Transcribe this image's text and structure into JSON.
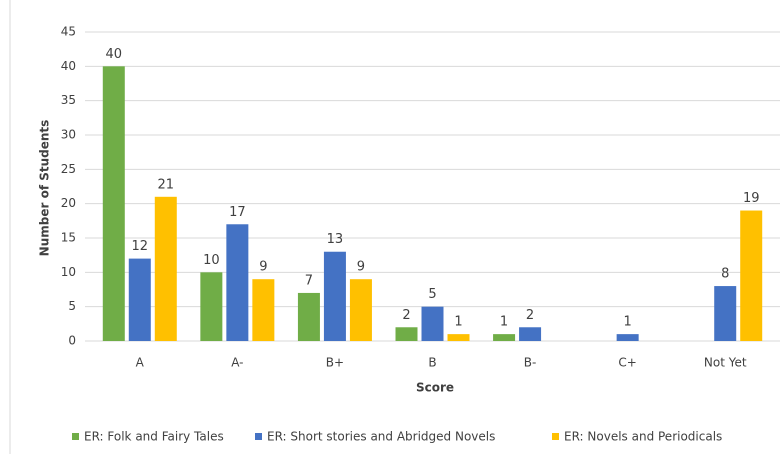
{
  "chart_data": {
    "type": "bar",
    "categories": [
      "A",
      "A-",
      "B+",
      "B",
      "B-",
      "C+",
      "Not Yet"
    ],
    "series": [
      {
        "name": "ER: Folk and Fairy Tales",
        "color": "#70ad47",
        "values": [
          40,
          10,
          7,
          2,
          1,
          null,
          null
        ]
      },
      {
        "name": "ER: Short stories and Abridged Novels",
        "color": "#4472c4",
        "values": [
          12,
          17,
          13,
          5,
          2,
          1,
          8
        ]
      },
      {
        "name": "ER: Novels and Periodicals",
        "color": "#ffc000",
        "values": [
          21,
          9,
          9,
          1,
          null,
          null,
          19
        ]
      }
    ],
    "xlabel": "Score",
    "ylabel": "Number of Students",
    "ylim": [
      0,
      45
    ],
    "yticks": [
      0,
      5,
      10,
      15,
      20,
      25,
      30,
      35,
      40,
      45
    ],
    "grid": true,
    "legend": "bottom",
    "value_labels_shown": true
  }
}
